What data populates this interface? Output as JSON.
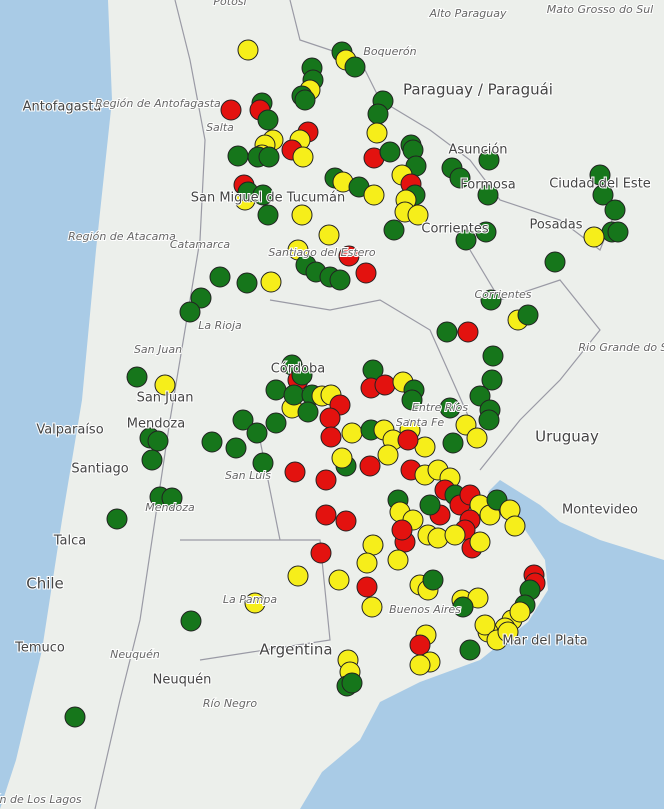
{
  "map": {
    "labels": [
      "Potosí",
      "Alto Paraguay",
      "Mato Grosso do Sul",
      "Boquerón",
      "Paraguay / Paraguái",
      "Antofagasta",
      "Región de Antofagasta",
      "Salta",
      "Asunción",
      "Formosa",
      "San Miguel de Tucumán",
      "Ciudad del Este",
      "Posadas",
      "Corrientes",
      "Región de Atacama",
      "Catamarca",
      "Santiago del Estero",
      "Corrientes",
      "La Rioja",
      "San Juan",
      "San Juan",
      "Córdoba",
      "Rio Grande do Sul",
      "Entre Ríos",
      "Uruguay",
      "Valparaíso",
      "Mendoza",
      "Santiago",
      "San Luis",
      "Santa Fe",
      "Montevideo",
      "Buenos Aires",
      "Mendoza",
      "Talca",
      "Chile",
      "La Pampa",
      "Argentina",
      "Mar del Plata",
      "Temuco",
      "Neuquén",
      "Neuquén",
      "Río Negro",
      "Región de Los Lagos"
    ]
  }
}
